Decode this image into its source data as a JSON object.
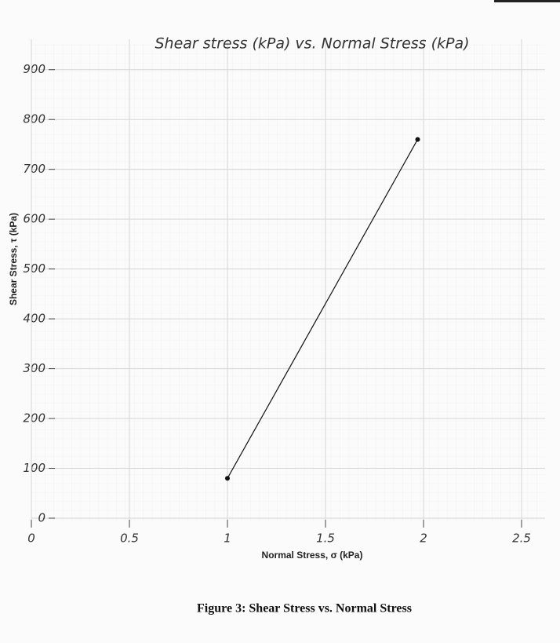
{
  "chart_data": {
    "type": "line",
    "title": "Shear stress (kPa) vs. Normal Stress (kPa)",
    "x_label": "Normal Stress, σ (kPa)",
    "y_label": "Shear Stress, τ (kPa)",
    "x": [
      1,
      1.97
    ],
    "series": [
      {
        "name": "Shear Stress",
        "color": "#111111",
        "values": [
          80,
          760
        ]
      }
    ],
    "xlim": [
      0,
      2.6
    ],
    "xticks": [
      0,
      0.5,
      1,
      1.5,
      2,
      2.5
    ],
    "ylim": [
      0,
      950
    ],
    "yticks": [
      0,
      100,
      200,
      300,
      400,
      500,
      600,
      700,
      800,
      900
    ],
    "grid": true
  },
  "caption": "Figure 3: Shear Stress vs. Normal Stress"
}
